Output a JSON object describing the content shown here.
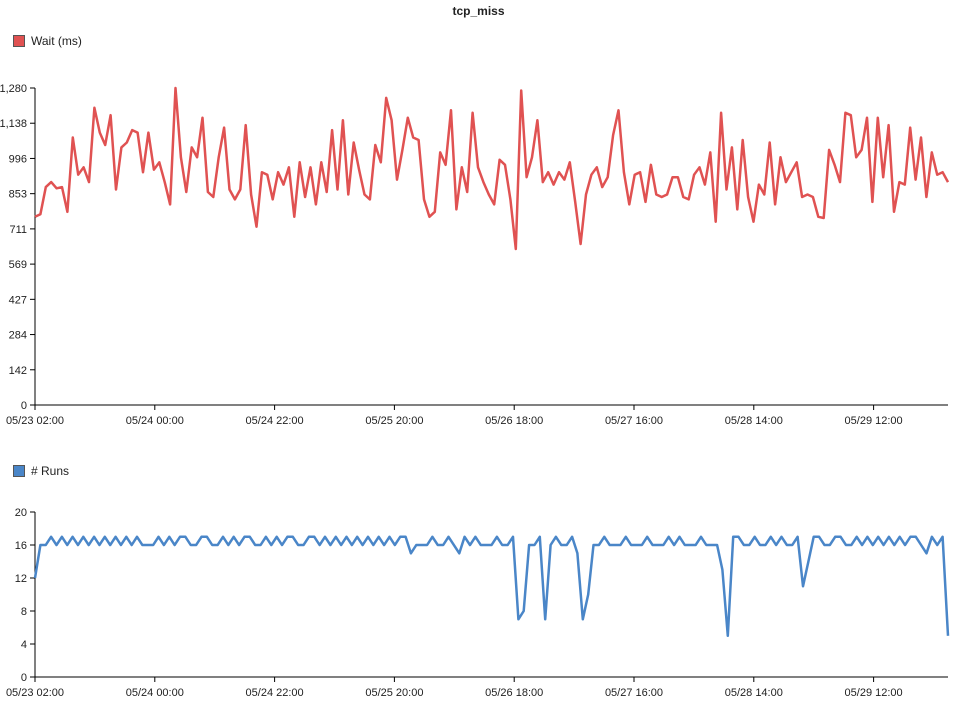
{
  "title": "tcp_miss",
  "colors": {
    "wait": "#e05252",
    "runs": "#4a86c8"
  },
  "chart_data": [
    {
      "type": "line",
      "legend": "Wait (ms)",
      "legend_placement": "top-left",
      "grid": false,
      "ylim": [
        0,
        1280
      ],
      "y_ticks": [
        "0",
        "142",
        "284",
        "427",
        "569",
        "711",
        "853",
        "996",
        "1,138",
        "1,280"
      ],
      "x_ticks": [
        "05/23 02:00",
        "05/24 00:00",
        "05/24 22:00",
        "05/25 20:00",
        "05/26 18:00",
        "05/27 16:00",
        "05/28 14:00",
        "05/29 12:00"
      ],
      "series": [
        {
          "name": "Wait (ms)",
          "values": [
            760,
            770,
            880,
            900,
            875,
            880,
            780,
            1080,
            930,
            960,
            900,
            1200,
            1100,
            1050,
            1170,
            870,
            1040,
            1060,
            1110,
            1100,
            940,
            1100,
            950,
            980,
            900,
            810,
            1280,
            1000,
            860,
            1040,
            1000,
            1160,
            860,
            840,
            1000,
            1120,
            870,
            830,
            870,
            1130,
            850,
            720,
            940,
            930,
            830,
            940,
            890,
            960,
            760,
            980,
            840,
            960,
            810,
            980,
            860,
            1110,
            870,
            1150,
            850,
            1060,
            950,
            850,
            830,
            1050,
            980,
            1240,
            1150,
            910,
            1030,
            1160,
            1080,
            1070,
            830,
            760,
            780,
            1020,
            970,
            1190,
            790,
            960,
            860,
            1180,
            960,
            900,
            850,
            810,
            990,
            970,
            830,
            630,
            1270,
            920,
            1000,
            1150,
            900,
            940,
            890,
            940,
            910,
            980,
            820,
            650,
            850,
            930,
            960,
            880,
            920,
            1090,
            1190,
            940,
            810,
            930,
            940,
            820,
            970,
            850,
            840,
            850,
            920,
            920,
            840,
            830,
            930,
            960,
            890,
            1020,
            740,
            1180,
            870,
            1040,
            790,
            1070,
            840,
            740,
            890,
            850,
            1060,
            810,
            1000,
            900,
            940,
            980,
            840,
            850,
            840,
            760,
            755,
            1030,
            970,
            900,
            1180,
            1170,
            1000,
            1030,
            1160,
            820,
            1160,
            920,
            1130,
            780,
            900,
            890,
            1120,
            910,
            1080,
            840,
            1020,
            930,
            940,
            900
          ]
        }
      ]
    },
    {
      "type": "line",
      "legend": "# Runs",
      "legend_placement": "top-left",
      "grid": false,
      "ylim": [
        0,
        20
      ],
      "y_ticks": [
        "0",
        "4",
        "8",
        "12",
        "16",
        "20"
      ],
      "x_ticks": [
        "05/23 02:00",
        "05/24 00:00",
        "05/24 22:00",
        "05/25 20:00",
        "05/26 18:00",
        "05/27 16:00",
        "05/28 14:00",
        "05/29 12:00"
      ],
      "series": [
        {
          "name": "# Runs",
          "values": [
            12,
            16,
            16,
            17,
            16,
            17,
            16,
            17,
            16,
            17,
            16,
            17,
            16,
            17,
            16,
            17,
            16,
            17,
            16,
            17,
            16,
            16,
            16,
            17,
            16,
            17,
            16,
            17,
            17,
            16,
            16,
            17,
            17,
            16,
            16,
            17,
            16,
            17,
            16,
            17,
            17,
            16,
            16,
            17,
            16,
            17,
            16,
            17,
            17,
            16,
            16,
            17,
            17,
            16,
            17,
            16,
            17,
            16,
            17,
            16,
            17,
            16,
            17,
            16,
            17,
            16,
            17,
            16,
            17,
            17,
            15,
            16,
            16,
            16,
            17,
            16,
            16,
            17,
            16,
            15,
            17,
            16,
            17,
            16,
            16,
            16,
            17,
            16,
            16,
            17,
            7,
            8,
            16,
            16,
            17,
            7,
            16,
            17,
            16,
            16,
            17,
            15,
            7,
            10,
            16,
            16,
            17,
            16,
            16,
            16,
            17,
            16,
            16,
            16,
            17,
            16,
            16,
            16,
            17,
            16,
            17,
            16,
            16,
            16,
            17,
            16,
            16,
            16,
            13,
            5,
            17,
            17,
            16,
            16,
            17,
            16,
            16,
            17,
            16,
            17,
            16,
            16,
            17,
            11,
            14,
            17,
            17,
            16,
            16,
            17,
            17,
            16,
            16,
            17,
            16,
            17,
            16,
            17,
            16,
            17,
            16,
            17,
            16,
            17,
            17,
            16,
            15,
            17,
            16,
            17,
            5
          ]
        }
      ]
    }
  ]
}
